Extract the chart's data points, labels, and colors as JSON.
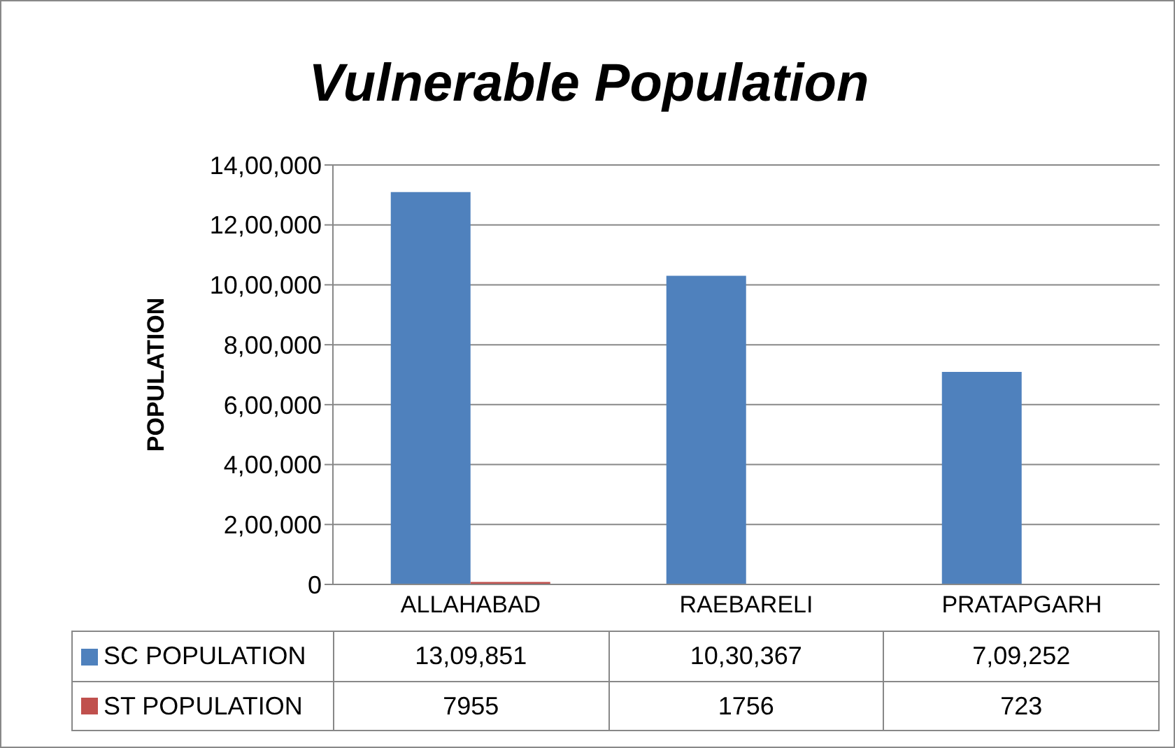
{
  "chart_data": {
    "type": "bar",
    "title": "Vulnerable Population",
    "ylabel": "POPULATION",
    "categories": [
      "ALLAHABAD",
      "RAEBARELI",
      "PRATAPGARH"
    ],
    "series": [
      {
        "name": "SC POPULATION",
        "color": "#4f81bd",
        "values": [
          1309851,
          1030367,
          709252
        ],
        "value_labels": [
          "13,09,851",
          "10,30,367",
          "7,09,252"
        ]
      },
      {
        "name": "ST POPULATION",
        "color": "#c0504d",
        "values": [
          7955,
          1756,
          723
        ],
        "value_labels": [
          "7955",
          "1756",
          "723"
        ]
      }
    ],
    "ylim": [
      0,
      1400000
    ],
    "yticks": [
      0,
      {
        "value": 200000,
        "label": "2,00,000"
      },
      {
        "value": 400000,
        "label": "4,00,000"
      },
      {
        "value": 600000,
        "label": "6,00,000"
      },
      {
        "value": 800000,
        "label": "8,00,000"
      },
      {
        "value": 1000000,
        "label": "10,00,000"
      },
      {
        "value": 1200000,
        "label": "12,00,000"
      },
      {
        "value": 1400000,
        "label": "14,00,000"
      }
    ],
    "grid": "y",
    "legend": "bottom"
  }
}
